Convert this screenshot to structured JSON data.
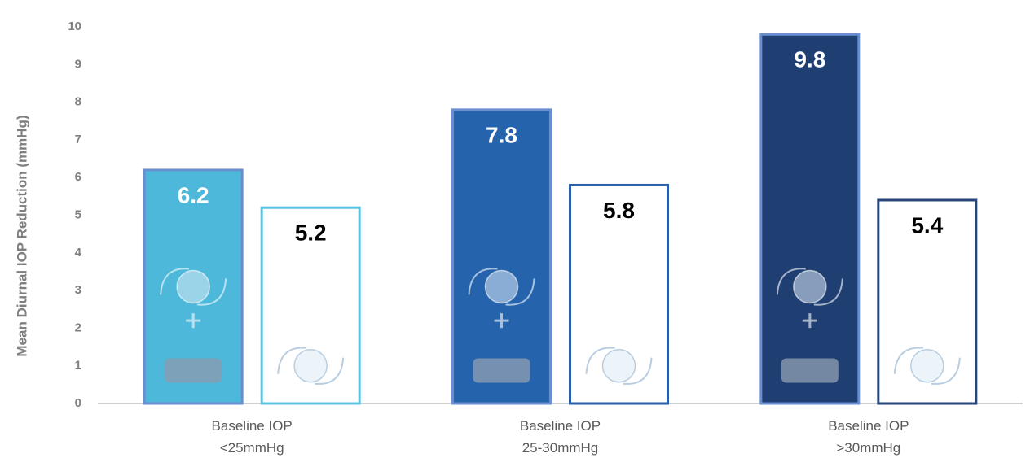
{
  "chart_data": {
    "type": "bar",
    "y_label": "Mean Diurnal IOP Reduction (mmHg)",
    "categories": [
      "Baseline IOP\n<25mmHg",
      "Baseline IOP\n25-30mmHg",
      "Baseline IOP\n>30mmHg"
    ],
    "series": [
      {
        "style": "filled",
        "colors": [
          "#4db8da",
          "#2563ad",
          "#1f3f73"
        ],
        "values": [
          6.2,
          7.8,
          9.8
        ]
      },
      {
        "style": "outline",
        "colors": [
          "#5bc3df",
          "#2a5ea8",
          "#274577"
        ],
        "values": [
          5.2,
          5.8,
          5.4
        ]
      }
    ],
    "ylim": [
      0,
      10
    ],
    "yticks": [
      0,
      1,
      2,
      3,
      4,
      5,
      6,
      7,
      8,
      9,
      10
    ],
    "grid": false
  }
}
